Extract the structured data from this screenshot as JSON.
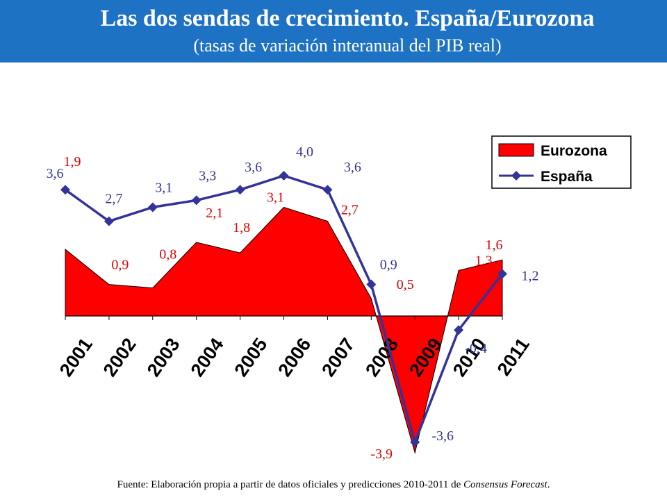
{
  "header": {
    "title": "Las dos sendas de crecimiento. España/Eurozona",
    "subtitle": "(tasas de variación interanual del PIB real)",
    "background_color": "#1e72c4"
  },
  "footer": {
    "text": "Fuente: Elaboración propia a partir de datos oficiales y predicciones 2010-2011 de ",
    "italic_text": "Consensus Forecast",
    "end": "."
  },
  "chart_data": {
    "type": "area",
    "title": "",
    "xlabel": "",
    "ylabel": "",
    "ylim": [
      -4.1,
      5.4
    ],
    "grid": false,
    "legend_position": "top-right",
    "categories": [
      "2001",
      "2002",
      "2003",
      "2004",
      "2005",
      "2006",
      "2007",
      "2008",
      "2009",
      "2010",
      "2011"
    ],
    "series": [
      {
        "name": "Eurozona",
        "type": "area",
        "color": "#ff0000",
        "values": [
          1.9,
          0.9,
          0.8,
          2.1,
          1.8,
          3.1,
          2.7,
          0.5,
          -3.9,
          1.3,
          1.6
        ],
        "labels": [
          "1,9",
          "0,9",
          "0,8",
          "2,1",
          "1,8",
          "3,1",
          "2,7",
          "0,5",
          "-3,9",
          "1,3",
          "1,6"
        ]
      },
      {
        "name": "España",
        "type": "line",
        "color": "#333399",
        "values": [
          3.6,
          2.7,
          3.1,
          3.3,
          3.6,
          4.0,
          3.6,
          0.9,
          -3.6,
          -0.4,
          1.2
        ],
        "labels": [
          "3,6",
          "2,7",
          "3,1",
          "3,3",
          "3,6",
          "4,0",
          "3,6",
          "0,9",
          "-3,6",
          "-0,4",
          "1,2"
        ]
      }
    ]
  }
}
